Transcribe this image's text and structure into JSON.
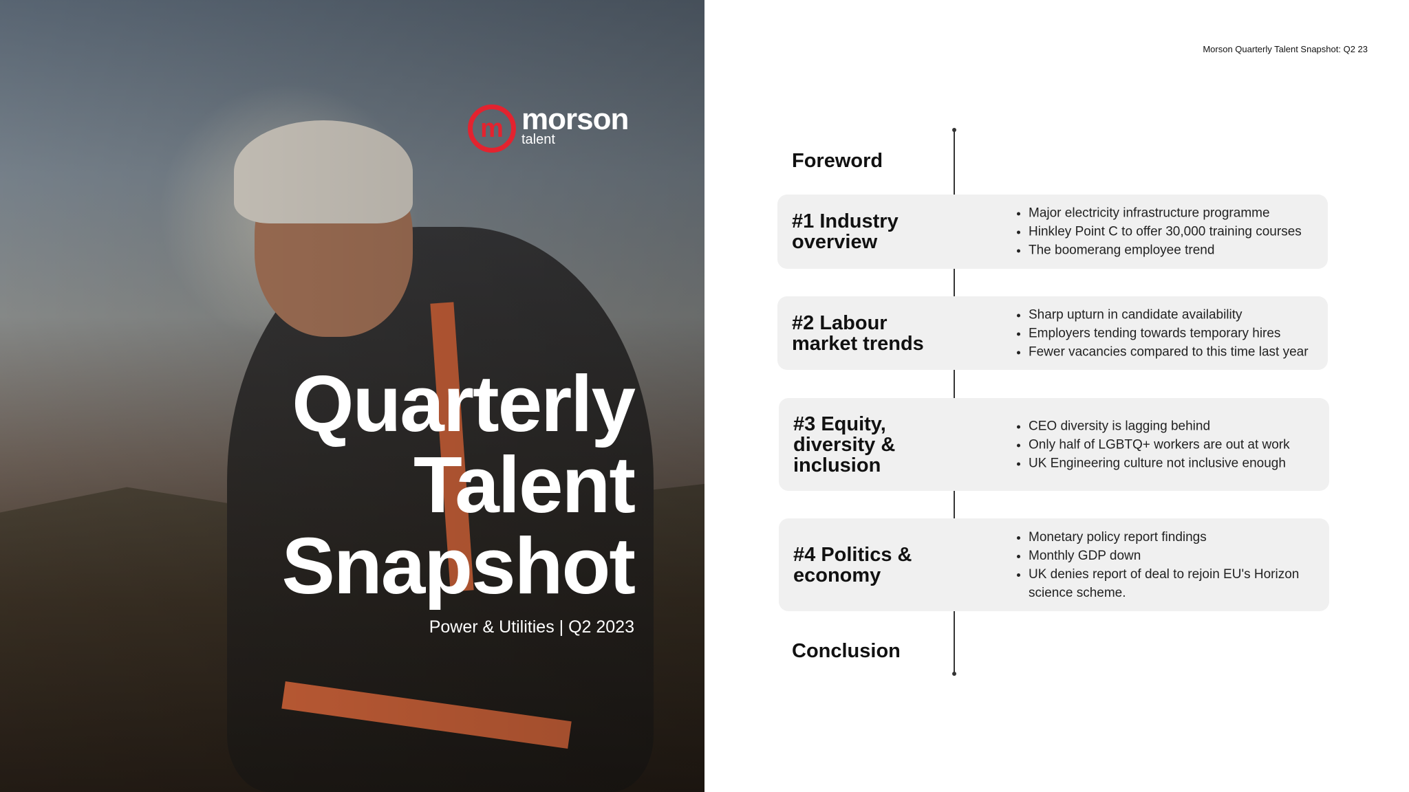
{
  "header": {
    "running_title": "Morson Quarterly Talent Snapshot: Q2 23"
  },
  "cover": {
    "logo": {
      "mark": "m",
      "name": "morson",
      "sub": "talent",
      "color": "#e3232f"
    },
    "title_lines": [
      "Quarterly",
      "Talent",
      "Snapshot"
    ],
    "subtitle": "Power & Utilities | Q2 2023"
  },
  "contents": {
    "foreword": "Foreword",
    "sections": [
      {
        "title": "#1 Industry overview",
        "bullets": [
          "Major electricity infrastructure programme",
          "Hinkley Point C to offer 30,000 training courses",
          "The boomerang employee trend"
        ]
      },
      {
        "title": "#2 Labour market trends",
        "bullets": [
          "Sharp upturn in candidate availability",
          "Employers tending towards temporary hires",
          "Fewer vacancies compared to this time last year"
        ]
      },
      {
        "title": "#3 Equity, diversity & inclusion",
        "bullets": [
          "CEO diversity is lagging behind",
          "Only half of LGBTQ+ workers are out at work",
          "UK Engineering culture not inclusive enough"
        ]
      },
      {
        "title": "#4 Politics & economy",
        "bullets": [
          "Monetary policy report findings",
          "Monthly GDP down",
          "UK denies report of  deal to rejoin EU's Horizon science scheme."
        ]
      }
    ],
    "conclusion": "Conclusion"
  }
}
